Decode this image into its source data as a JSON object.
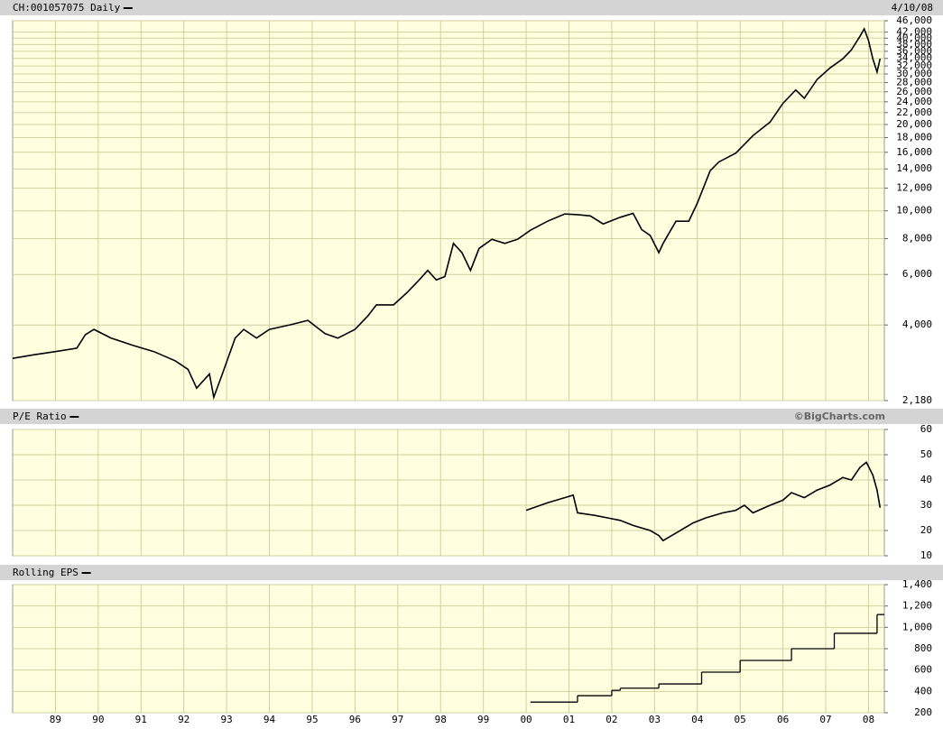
{
  "chart_data": [
    {
      "type": "line",
      "title": "CH:001057075 Daily",
      "date": "4/10/08",
      "scale": "log",
      "color": "#000000",
      "grid": true,
      "xlim": [
        1988,
        2008.37
      ],
      "ylim": [
        2180,
        46000
      ],
      "yticks": [
        {
          "value": 2180,
          "label": "2,180"
        },
        {
          "value": 4000,
          "label": "4,000"
        },
        {
          "value": 6000,
          "label": "6,000"
        },
        {
          "value": 8000,
          "label": "8,000"
        },
        {
          "value": 10000,
          "label": "10,000"
        },
        {
          "value": 12000,
          "label": "12,000"
        },
        {
          "value": 14000,
          "label": "14,000"
        },
        {
          "value": 16000,
          "label": "16,000"
        },
        {
          "value": 18000,
          "label": "18,000"
        },
        {
          "value": 20000,
          "label": "20,000"
        },
        {
          "value": 22000,
          "label": "22,000"
        },
        {
          "value": 24000,
          "label": "24,000"
        },
        {
          "value": 26000,
          "label": "26,000"
        },
        {
          "value": 28000,
          "label": "28,000"
        },
        {
          "value": 30000,
          "label": "30,000"
        },
        {
          "value": 32000,
          "label": "32,000"
        },
        {
          "value": 34000,
          "label": "34,000"
        },
        {
          "value": 36000,
          "label": "36,000"
        },
        {
          "value": 38000,
          "label": "38,000"
        },
        {
          "value": 40000,
          "label": "40,000"
        },
        {
          "value": 42000,
          "label": "42,000"
        },
        {
          "value": 46000,
          "label": "46,000"
        }
      ],
      "x": [
        1988.0,
        1988.5,
        1989.0,
        1989.5,
        1989.7,
        1989.9,
        1990.3,
        1990.8,
        1991.3,
        1991.8,
        1992.1,
        1992.3,
        1992.6,
        1992.7,
        1992.9,
        1993.2,
        1993.4,
        1993.7,
        1994.0,
        1994.5,
        1994.9,
        1995.3,
        1995.6,
        1996.0,
        1996.3,
        1996.5,
        1996.9,
        1997.2,
        1997.5,
        1997.7,
        1997.9,
        1998.1,
        1998.3,
        1998.5,
        1998.7,
        1998.9,
        1999.2,
        1999.5,
        1999.8,
        2000.1,
        2000.5,
        2000.9,
        2001.2,
        2001.5,
        2001.8,
        2002.2,
        2002.5,
        2002.7,
        2002.9,
        2003.1,
        2003.2,
        2003.5,
        2003.8,
        2004.0,
        2004.3,
        2004.5,
        2004.9,
        2005.3,
        2005.7,
        2006.0,
        2006.3,
        2006.5,
        2006.8,
        2007.1,
        2007.4,
        2007.6,
        2007.8,
        2007.9,
        2008.0,
        2008.1,
        2008.2,
        2008.27
      ],
      "values": [
        3060,
        3150,
        3230,
        3320,
        3700,
        3860,
        3600,
        3400,
        3230,
        3000,
        2800,
        2410,
        2700,
        2240,
        2700,
        3600,
        3860,
        3600,
        3860,
        4010,
        4150,
        3730,
        3600,
        3860,
        4300,
        4700,
        4700,
        5160,
        5740,
        6200,
        5740,
        5900,
        7700,
        7150,
        6200,
        7400,
        7960,
        7700,
        7960,
        8560,
        9200,
        9750,
        9700,
        9600,
        9000,
        9500,
        9800,
        8600,
        8200,
        7150,
        7700,
        9200,
        9200,
        10650,
        13800,
        14800,
        15900,
        18300,
        20400,
        23700,
        26400,
        24700,
        28700,
        31500,
        33900,
        36400,
        40600,
        43100,
        39200,
        33900,
        30500,
        33900
      ]
    },
    {
      "type": "line",
      "title": "P/E Ratio",
      "note": "©BigCharts.com",
      "color": "#000000",
      "grid": true,
      "xlim": [
        1988,
        2008.37
      ],
      "ylim": [
        10,
        60
      ],
      "yticks": [
        10,
        20,
        30,
        40,
        50,
        60
      ],
      "x": [
        2000.0,
        2000.5,
        2000.9,
        2001.1,
        2001.2,
        2001.6,
        2001.9,
        2002.2,
        2002.5,
        2002.9,
        2003.1,
        2003.2,
        2003.5,
        2003.9,
        2004.2,
        2004.6,
        2004.9,
        2005.1,
        2005.3,
        2005.7,
        2006.0,
        2006.2,
        2006.5,
        2006.8,
        2007.1,
        2007.4,
        2007.6,
        2007.8,
        2007.95,
        2008.1,
        2008.2,
        2008.27
      ],
      "values": [
        28,
        31,
        33,
        34,
        27,
        26,
        25,
        24,
        22,
        20,
        18,
        16,
        19,
        23,
        25,
        27,
        28,
        30,
        27,
        30,
        32,
        35,
        33,
        36,
        38,
        41,
        40,
        45,
        47,
        42,
        36,
        29
      ]
    },
    {
      "type": "step",
      "title": "Rolling EPS",
      "color": "#000000",
      "grid": true,
      "xlim": [
        1988,
        2008.37
      ],
      "ylim": [
        200,
        1400
      ],
      "yticks": [
        200,
        400,
        600,
        800,
        {
          "value": 1000,
          "label": "1,000"
        },
        {
          "value": 1200,
          "label": "1,200"
        },
        {
          "value": 1400,
          "label": "1,400"
        }
      ],
      "xticks": [
        {
          "value": 1989,
          "label": "89"
        },
        {
          "value": 1990,
          "label": "90"
        },
        {
          "value": 1991,
          "label": "91"
        },
        {
          "value": 1992,
          "label": "92"
        },
        {
          "value": 1993,
          "label": "93"
        },
        {
          "value": 1994,
          "label": "94"
        },
        {
          "value": 1995,
          "label": "95"
        },
        {
          "value": 1996,
          "label": "96"
        },
        {
          "value": 1997,
          "label": "97"
        },
        {
          "value": 1998,
          "label": "98"
        },
        {
          "value": 1999,
          "label": "99"
        },
        {
          "value": 2000,
          "label": "00"
        },
        {
          "value": 2001,
          "label": "01"
        },
        {
          "value": 2002,
          "label": "02"
        },
        {
          "value": 2003,
          "label": "03"
        },
        {
          "value": 2004,
          "label": "04"
        },
        {
          "value": 2005,
          "label": "05"
        },
        {
          "value": 2006,
          "label": "06"
        },
        {
          "value": 2007,
          "label": "07"
        },
        {
          "value": 2008,
          "label": "08"
        }
      ],
      "x": [
        2000.1,
        2001.2,
        2002.0,
        2002.2,
        2003.1,
        2004.1,
        2005.0,
        2006.2,
        2007.2,
        2008.2
      ],
      "values": [
        300,
        360,
        410,
        430,
        470,
        580,
        690,
        800,
        944,
        1120
      ]
    }
  ]
}
